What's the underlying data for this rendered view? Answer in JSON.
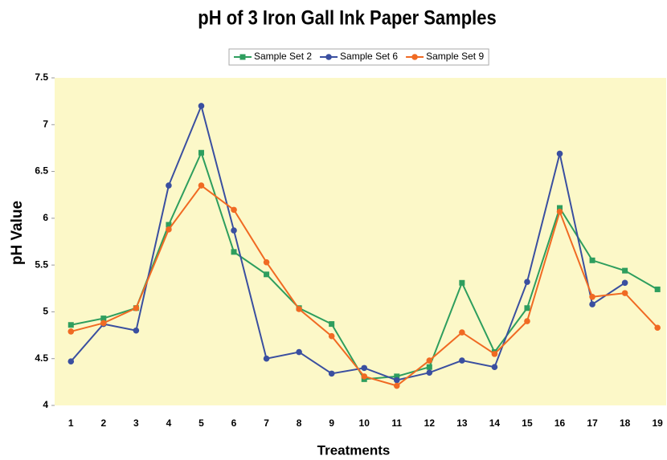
{
  "chart_data": {
    "type": "line",
    "title": "pH of 3 Iron Gall Ink Paper Samples",
    "x_label": "Treatments",
    "y_label": "pH Value",
    "categories": [
      "1",
      "2",
      "3",
      "4",
      "5",
      "6",
      "7",
      "8",
      "9",
      "10",
      "11",
      "12",
      "13",
      "14",
      "15",
      "16",
      "17",
      "18",
      "19"
    ],
    "series": [
      {
        "name": "Sample Set 2",
        "color": "#2e9e5e",
        "marker": "square",
        "values": [
          4.86,
          4.93,
          5.04,
          5.93,
          6.7,
          5.64,
          5.4,
          5.04,
          4.87,
          4.28,
          4.31,
          4.41,
          5.31,
          4.57,
          5.04,
          6.11,
          5.55,
          5.44,
          5.24
        ]
      },
      {
        "name": "Sample Set 6",
        "color": "#3a4fa0",
        "marker": "circle",
        "values": [
          4.47,
          4.87,
          4.8,
          6.35,
          7.2,
          5.87,
          4.5,
          4.57,
          4.34,
          4.4,
          4.27,
          4.35,
          4.48,
          4.41,
          5.32,
          6.69,
          5.08,
          5.31,
          null
        ]
      },
      {
        "name": "Sample Set 9",
        "color": "#f06a23",
        "marker": "circle",
        "values": [
          4.79,
          4.88,
          5.04,
          5.88,
          6.35,
          6.09,
          5.53,
          5.03,
          4.74,
          4.31,
          4.21,
          4.48,
          4.78,
          4.55,
          4.9,
          6.07,
          5.16,
          5.2,
          4.83
        ]
      }
    ],
    "ylim": [
      4,
      7.5
    ],
    "yticks": [
      4,
      4.5,
      5,
      5.5,
      6,
      6.5,
      7,
      7.5
    ],
    "plot_background": "#fcf8c8",
    "legend": "top"
  }
}
